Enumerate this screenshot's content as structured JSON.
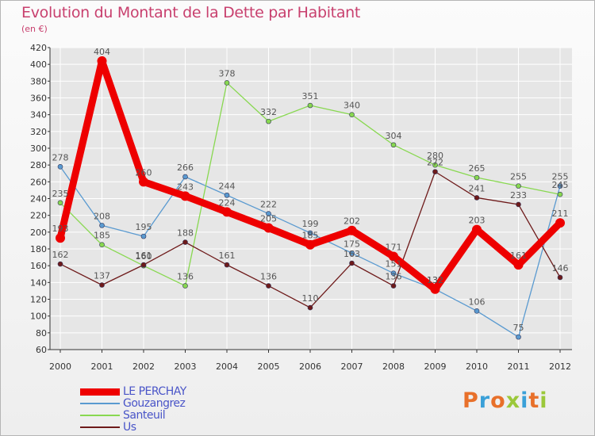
{
  "header": {
    "title": "Evolution du Montant de la Dette par Habitant",
    "subtitle": "(en €)"
  },
  "logo": {
    "text": "Proxiti",
    "colors": [
      "#e8702a",
      "#3aa0d8",
      "#e8702a",
      "#9bc83a",
      "#3aa0d8",
      "#e8702a",
      "#9bc83a"
    ]
  },
  "colors": {
    "grid": "#ffffff",
    "axis": "#333333",
    "tick_text": "#333333",
    "label_text": "#555555"
  },
  "chart_data": {
    "type": "line",
    "title": "Evolution du Montant de la Dette par Habitant",
    "ylabel": "(en €)",
    "xlabel": "",
    "x": [
      "2000",
      "2001",
      "2002",
      "2003",
      "2004",
      "2005",
      "2006",
      "2007",
      "2008",
      "2009",
      "2010",
      "2011",
      "2012"
    ],
    "ylim": [
      60,
      420
    ],
    "ystep": 20,
    "grid": true,
    "legend_position": "bottom-left",
    "series": [
      {
        "name": "LE PERCHAY",
        "color": "#ee0000",
        "width": 9,
        "marker": 6,
        "values": [
          193,
          404,
          260,
          243,
          224,
          205,
          185,
          202,
          171,
          132,
          203,
          161,
          211
        ]
      },
      {
        "name": "Gouzangrez",
        "color": "#5a9ad0",
        "width": 1.3,
        "marker": 3,
        "values": [
          278,
          208,
          195,
          266,
          244,
          222,
          199,
          175,
          151,
          132,
          106,
          75,
          255
        ]
      },
      {
        "name": "Santeuil",
        "color": "#88d850",
        "width": 1.3,
        "marker": 3,
        "values": [
          235,
          185,
          160,
          136,
          378,
          332,
          351,
          340,
          304,
          280,
          265,
          255,
          245
        ]
      },
      {
        "name": "Us",
        "color": "#6e1a1a",
        "width": 1.3,
        "marker": 3,
        "values": [
          162,
          137,
          161,
          188,
          161,
          136,
          110,
          163,
          136,
          272,
          241,
          233,
          146
        ]
      }
    ]
  }
}
